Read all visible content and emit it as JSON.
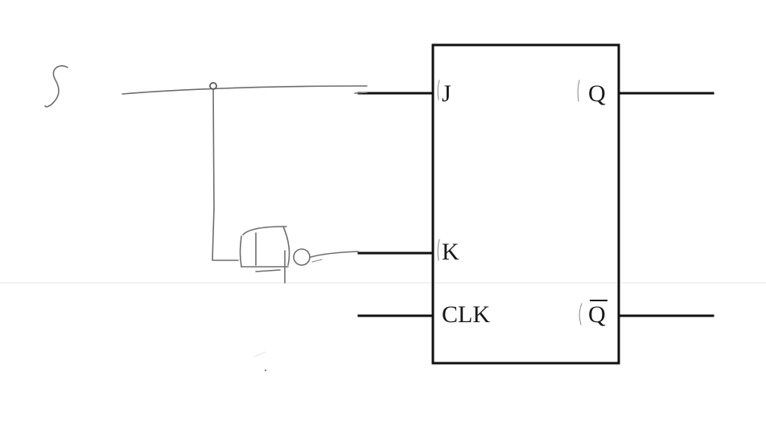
{
  "flip_flop": {
    "inputs": {
      "j": "J",
      "k": "K",
      "clk": "CLK"
    },
    "outputs": {
      "q": "Q",
      "q_bar": "Q"
    }
  }
}
